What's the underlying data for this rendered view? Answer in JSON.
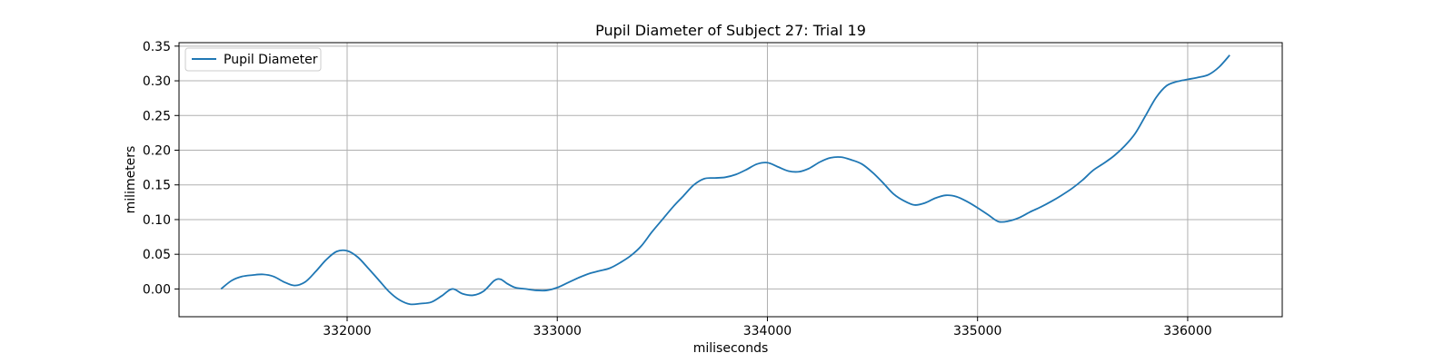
{
  "chart_data": {
    "type": "line",
    "title": "Pupil Diameter of Subject 27: Trial 19",
    "xlabel": "miliseconds",
    "ylabel": "milimeters",
    "xlim": [
      331200,
      336450
    ],
    "ylim": [
      -0.04,
      0.355
    ],
    "xticks": [
      332000,
      333000,
      334000,
      335000,
      336000
    ],
    "xtick_labels": [
      "332000",
      "333000",
      "334000",
      "335000",
      "336000"
    ],
    "yticks": [
      0.0,
      0.05,
      0.1,
      0.15,
      0.2,
      0.25,
      0.3,
      0.35
    ],
    "ytick_labels": [
      "0.00",
      "0.05",
      "0.10",
      "0.15",
      "0.20",
      "0.25",
      "0.30",
      "0.35"
    ],
    "grid": true,
    "legend_position": "top-left",
    "colors": {
      "series": "#1f77b4",
      "grid": "#b0b0b0",
      "axes": "#000000"
    },
    "series": [
      {
        "name": "Pupil Diameter",
        "x": [
          331400,
          331450,
          331500,
          331550,
          331600,
          331650,
          331700,
          331750,
          331800,
          331850,
          331900,
          331950,
          332000,
          332050,
          332100,
          332150,
          332200,
          332250,
          332300,
          332350,
          332400,
          332450,
          332500,
          332550,
          332600,
          332650,
          332700,
          332730,
          332760,
          332800,
          332850,
          332900,
          332950,
          333000,
          333050,
          333100,
          333150,
          333200,
          333250,
          333300,
          333350,
          333400,
          333450,
          333500,
          333550,
          333600,
          333650,
          333700,
          333750,
          333800,
          333850,
          333900,
          333950,
          334000,
          334050,
          334100,
          334150,
          334200,
          334250,
          334300,
          334350,
          334400,
          334450,
          334500,
          334550,
          334600,
          334650,
          334700,
          334750,
          334800,
          334850,
          334900,
          334950,
          335000,
          335050,
          335100,
          335150,
          335200,
          335250,
          335300,
          335350,
          335400,
          335450,
          335500,
          335550,
          335600,
          335650,
          335700,
          335750,
          335800,
          335850,
          335900,
          335950,
          336000,
          336050,
          336100,
          336150,
          336200
        ],
        "values": [
          0.0,
          0.012,
          0.018,
          0.02,
          0.021,
          0.018,
          0.01,
          0.005,
          0.01,
          0.025,
          0.042,
          0.054,
          0.055,
          0.046,
          0.03,
          0.013,
          -0.004,
          -0.016,
          -0.022,
          -0.021,
          -0.019,
          -0.01,
          0.0,
          -0.007,
          -0.009,
          -0.003,
          0.012,
          0.014,
          0.008,
          0.002,
          0.0,
          -0.002,
          -0.002,
          0.002,
          0.009,
          0.016,
          0.022,
          0.026,
          0.03,
          0.038,
          0.048,
          0.062,
          0.082,
          0.1,
          0.118,
          0.134,
          0.15,
          0.159,
          0.16,
          0.161,
          0.165,
          0.172,
          0.18,
          0.182,
          0.176,
          0.17,
          0.169,
          0.174,
          0.183,
          0.189,
          0.19,
          0.186,
          0.18,
          0.168,
          0.153,
          0.137,
          0.127,
          0.121,
          0.124,
          0.131,
          0.135,
          0.133,
          0.126,
          0.117,
          0.107,
          0.097,
          0.098,
          0.103,
          0.111,
          0.118,
          0.126,
          0.135,
          0.145,
          0.157,
          0.171,
          0.181,
          0.192,
          0.206,
          0.224,
          0.25,
          0.276,
          0.293,
          0.299,
          0.302,
          0.305,
          0.309,
          0.32,
          0.337
        ]
      }
    ]
  }
}
